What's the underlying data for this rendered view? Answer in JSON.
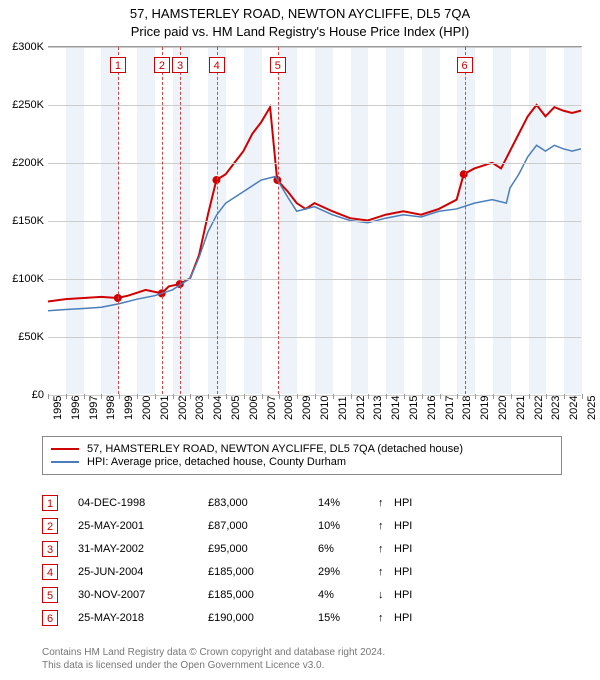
{
  "title_line1": "57, HAMSTERLEY ROAD, NEWTON AYCLIFFE, DL5 7QA",
  "title_line2": "Price paid vs. HM Land Registry's House Price Index (HPI)",
  "chart": {
    "type": "line",
    "x_start_year": 1995,
    "x_end_year": 2025,
    "ylim": [
      0,
      300000
    ],
    "ytick_step": 50000,
    "y_labels": [
      "£0",
      "£50K",
      "£100K",
      "£150K",
      "£200K",
      "£250K",
      "£300K"
    ],
    "x_years": [
      1995,
      1996,
      1997,
      1998,
      1999,
      2000,
      2001,
      2002,
      2003,
      2004,
      2005,
      2006,
      2007,
      2008,
      2009,
      2010,
      2011,
      2012,
      2013,
      2014,
      2015,
      2016,
      2017,
      2018,
      2019,
      2020,
      2021,
      2022,
      2023,
      2024,
      2025
    ],
    "alt_band_color": "#eef3f9",
    "grid_color": "#cccccc",
    "background_color": "#ffffff",
    "series": [
      {
        "label": "57, HAMSTERLEY ROAD, NEWTON AYCLIFFE, DL5 7QA (detached house)",
        "color": "#d00000",
        "width": 2,
        "points": [
          [
            1995.0,
            80000
          ],
          [
            1996.0,
            82000
          ],
          [
            1997.0,
            83000
          ],
          [
            1998.0,
            84000
          ],
          [
            1998.9,
            83000
          ],
          [
            1999.5,
            85000
          ],
          [
            2000.5,
            90000
          ],
          [
            2001.4,
            87000
          ],
          [
            2001.8,
            93000
          ],
          [
            2002.4,
            95000
          ],
          [
            2003.0,
            100000
          ],
          [
            2003.5,
            120000
          ],
          [
            2004.0,
            155000
          ],
          [
            2004.48,
            185000
          ],
          [
            2005.0,
            190000
          ],
          [
            2005.5,
            200000
          ],
          [
            2006.0,
            210000
          ],
          [
            2006.5,
            225000
          ],
          [
            2007.0,
            235000
          ],
          [
            2007.5,
            248000
          ],
          [
            2007.9,
            185000
          ],
          [
            2008.5,
            175000
          ],
          [
            2009.0,
            165000
          ],
          [
            2009.5,
            160000
          ],
          [
            2010.0,
            165000
          ],
          [
            2011.0,
            158000
          ],
          [
            2012.0,
            152000
          ],
          [
            2013.0,
            150000
          ],
          [
            2014.0,
            155000
          ],
          [
            2015.0,
            158000
          ],
          [
            2016.0,
            155000
          ],
          [
            2017.0,
            160000
          ],
          [
            2018.0,
            168000
          ],
          [
            2018.4,
            190000
          ],
          [
            2019.0,
            195000
          ],
          [
            2020.0,
            200000
          ],
          [
            2020.5,
            195000
          ],
          [
            2021.0,
            210000
          ],
          [
            2021.5,
            225000
          ],
          [
            2022.0,
            240000
          ],
          [
            2022.5,
            250000
          ],
          [
            2023.0,
            240000
          ],
          [
            2023.5,
            248000
          ],
          [
            2024.0,
            245000
          ],
          [
            2024.5,
            243000
          ],
          [
            2025.0,
            245000
          ]
        ]
      },
      {
        "label": "HPI: Average price, detached house, County Durham",
        "color": "#4a7ebb",
        "width": 1.5,
        "points": [
          [
            1995.0,
            72000
          ],
          [
            1996.0,
            73000
          ],
          [
            1997.0,
            74000
          ],
          [
            1998.0,
            75000
          ],
          [
            1999.0,
            78000
          ],
          [
            2000.0,
            82000
          ],
          [
            2001.0,
            85000
          ],
          [
            2002.0,
            90000
          ],
          [
            2003.0,
            100000
          ],
          [
            2003.5,
            118000
          ],
          [
            2004.0,
            140000
          ],
          [
            2004.5,
            155000
          ],
          [
            2005.0,
            165000
          ],
          [
            2006.0,
            175000
          ],
          [
            2007.0,
            185000
          ],
          [
            2007.8,
            188000
          ],
          [
            2008.5,
            170000
          ],
          [
            2009.0,
            158000
          ],
          [
            2010.0,
            162000
          ],
          [
            2011.0,
            155000
          ],
          [
            2012.0,
            150000
          ],
          [
            2013.0,
            148000
          ],
          [
            2014.0,
            152000
          ],
          [
            2015.0,
            155000
          ],
          [
            2016.0,
            153000
          ],
          [
            2017.0,
            158000
          ],
          [
            2018.0,
            160000
          ],
          [
            2019.0,
            165000
          ],
          [
            2020.0,
            168000
          ],
          [
            2020.8,
            165000
          ],
          [
            2021.0,
            178000
          ],
          [
            2021.5,
            190000
          ],
          [
            2022.0,
            205000
          ],
          [
            2022.5,
            215000
          ],
          [
            2023.0,
            210000
          ],
          [
            2023.5,
            215000
          ],
          [
            2024.0,
            212000
          ],
          [
            2024.5,
            210000
          ],
          [
            2025.0,
            212000
          ]
        ]
      }
    ],
    "markers": [
      {
        "n": "1",
        "year": 1998.93,
        "price": 83000
      },
      {
        "n": "2",
        "year": 2001.4,
        "price": 87000
      },
      {
        "n": "3",
        "year": 2002.42,
        "price": 95000
      },
      {
        "n": "4",
        "year": 2004.48,
        "price": 185000
      },
      {
        "n": "5",
        "year": 2007.91,
        "price": 185000
      },
      {
        "n": "6",
        "year": 2018.4,
        "price": 190000
      }
    ],
    "marker_line_color": "#d44444",
    "sale_dot_color": "#d00000"
  },
  "legend": {
    "items": [
      {
        "color": "#d00000",
        "label": "57, HAMSTERLEY ROAD, NEWTON AYCLIFFE, DL5 7QA (detached house)"
      },
      {
        "color": "#4a7ebb",
        "label": "HPI: Average price, detached house, County Durham"
      }
    ]
  },
  "events": [
    {
      "n": "1",
      "date": "04-DEC-1998",
      "price": "£83,000",
      "pct": "14%",
      "dir": "↑",
      "suffix": "HPI"
    },
    {
      "n": "2",
      "date": "25-MAY-2001",
      "price": "£87,000",
      "pct": "10%",
      "dir": "↑",
      "suffix": "HPI"
    },
    {
      "n": "3",
      "date": "31-MAY-2002",
      "price": "£95,000",
      "pct": "6%",
      "dir": "↑",
      "suffix": "HPI"
    },
    {
      "n": "4",
      "date": "25-JUN-2004",
      "price": "£185,000",
      "pct": "29%",
      "dir": "↑",
      "suffix": "HPI"
    },
    {
      "n": "5",
      "date": "30-NOV-2007",
      "price": "£185,000",
      "pct": "4%",
      "dir": "↓",
      "suffix": "HPI"
    },
    {
      "n": "6",
      "date": "25-MAY-2018",
      "price": "£190,000",
      "pct": "15%",
      "dir": "↑",
      "suffix": "HPI"
    }
  ],
  "footer_line1": "Contains HM Land Registry data © Crown copyright and database right 2024.",
  "footer_line2": "This data is licensed under the Open Government Licence v3.0."
}
